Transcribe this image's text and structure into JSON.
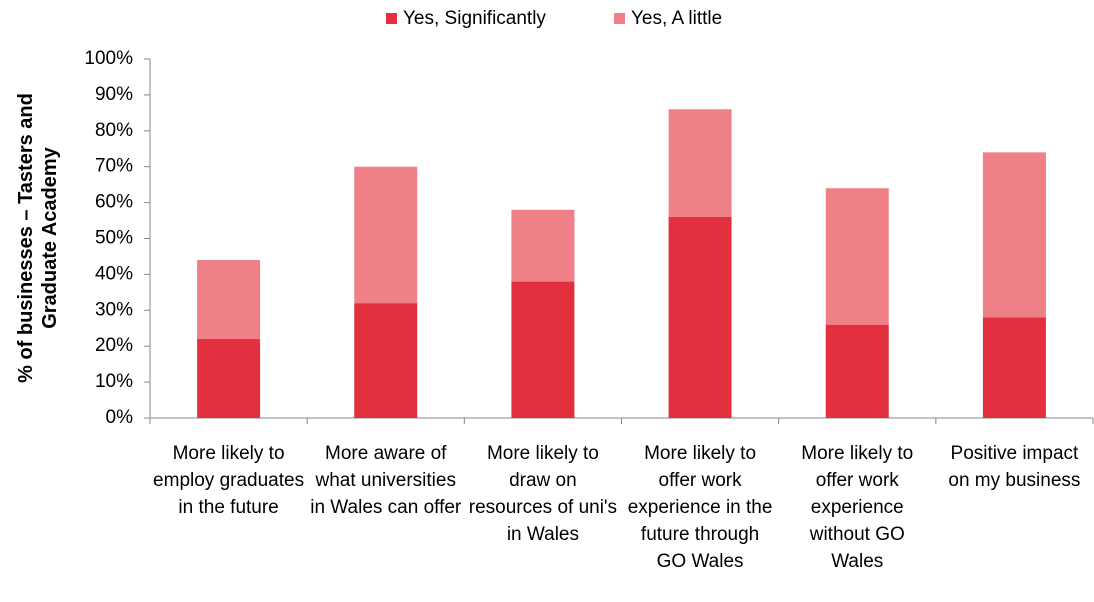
{
  "chart_data": {
    "type": "stacked_bar",
    "y_axis_label": "% of businesses – Tasters and Graduate Academy",
    "categories": [
      "More likely to employ graduates in the future",
      "More aware of what universities in Wales can offer",
      "More likely to draw on resources of uni's in Wales",
      "More likely to offer work experience in the future through GO Wales",
      "More likely to offer work experience without GO Wales",
      "Positive impact on my business"
    ],
    "series": [
      {
        "name": "Yes, Significantly",
        "color": "#e3303e",
        "values": [
          22,
          32,
          38,
          56,
          26,
          28
        ]
      },
      {
        "name": "Yes, A little",
        "color": "#ef8088",
        "values": [
          22,
          38,
          20,
          30,
          38,
          46
        ]
      }
    ],
    "ylim": [
      0,
      100
    ],
    "yticks": [
      {
        "value": 0,
        "label": "0%"
      },
      {
        "value": 10,
        "label": "10%"
      },
      {
        "value": 20,
        "label": "20%"
      },
      {
        "value": 30,
        "label": "30%"
      },
      {
        "value": 40,
        "label": "40%"
      },
      {
        "value": 50,
        "label": "50%"
      },
      {
        "value": 60,
        "label": "60%"
      },
      {
        "value": 70,
        "label": "70%"
      },
      {
        "value": 80,
        "label": "80%"
      },
      {
        "value": 90,
        "label": "90%"
      },
      {
        "value": 100,
        "label": "100%"
      }
    ],
    "legend": "top",
    "grid": false
  }
}
